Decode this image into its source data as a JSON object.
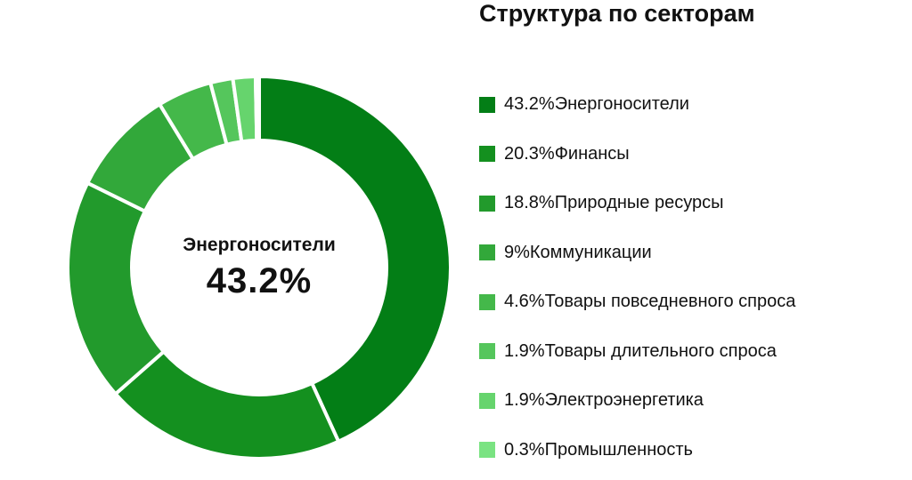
{
  "chart_data": {
    "type": "pie",
    "donut": true,
    "title": "Структура по секторам",
    "center_label": "Энергоносители",
    "center_value": "43.2%",
    "legend_position": "right",
    "series": [
      {
        "label": "Энергоносители",
        "value": 43.2,
        "display": "43.2%",
        "color": "#037e16"
      },
      {
        "label": "Финансы",
        "value": 20.3,
        "display": "20.3%",
        "color": "#14901f"
      },
      {
        "label": "Природные ресурсы",
        "value": 18.8,
        "display": "18.8%",
        "color": "#229a2c"
      },
      {
        "label": "Коммуникации",
        "value": 9,
        "display": "9%",
        "color": "#32a83a"
      },
      {
        "label": "Товары повседневного спроса",
        "value": 4.6,
        "display": "4.6%",
        "color": "#44b84a"
      },
      {
        "label": "Товары длительного спроса",
        "value": 1.9,
        "display": "1.9%",
        "color": "#55c65c"
      },
      {
        "label": "Электроэнергетика",
        "value": 1.9,
        "display": "1.9%",
        "color": "#66d46d"
      },
      {
        "label": "Промышленность",
        "value": 0.3,
        "display": "0.3%",
        "color": "#7ae382"
      }
    ]
  }
}
